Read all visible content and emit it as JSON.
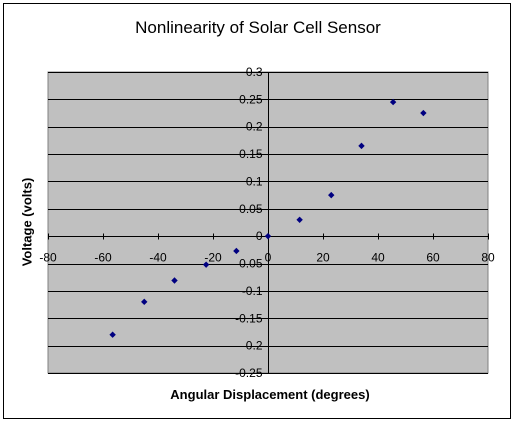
{
  "chart_data": {
    "type": "scatter",
    "title": "Nonlinearity of Solar Cell Sensor",
    "xlabel": "Angular Displacement (degrees)",
    "ylabel": "Voltage (volts)",
    "xlim": [
      -80,
      80
    ],
    "ylim": [
      -0.25,
      0.3
    ],
    "x_ticks": [
      -80,
      -60,
      -40,
      -20,
      0,
      20,
      40,
      60,
      80
    ],
    "x_tick_labels": [
      "-80",
      "-60",
      "-40",
      "-20",
      "0",
      "20",
      "40",
      "60",
      "80"
    ],
    "y_ticks": [
      0.3,
      0.25,
      0.2,
      0.15,
      0.1,
      0.05,
      0,
      -0.05,
      -0.1,
      -0.15,
      -0.2,
      -0.25
    ],
    "y_tick_labels": [
      "0.3",
      "0.25",
      "0.2",
      "0.15",
      "0.1",
      "0.05",
      "0",
      "-0.05",
      "-0.1",
      "-0.15",
      "-0.2",
      "-0.25"
    ],
    "grid": true,
    "legend": false,
    "plot_background": "#c0c0c0",
    "marker_color": "#000080",
    "points": [
      {
        "x": -56.5,
        "y": -0.18
      },
      {
        "x": -45,
        "y": -0.12
      },
      {
        "x": -34,
        "y": -0.081
      },
      {
        "x": -22.5,
        "y": -0.052
      },
      {
        "x": -11.5,
        "y": -0.027
      },
      {
        "x": 0,
        "y": 0
      },
      {
        "x": 11.5,
        "y": 0.03
      },
      {
        "x": 23,
        "y": 0.075
      },
      {
        "x": 34,
        "y": 0.165
      },
      {
        "x": 45.5,
        "y": 0.245
      },
      {
        "x": 56.5,
        "y": 0.225
      }
    ]
  }
}
